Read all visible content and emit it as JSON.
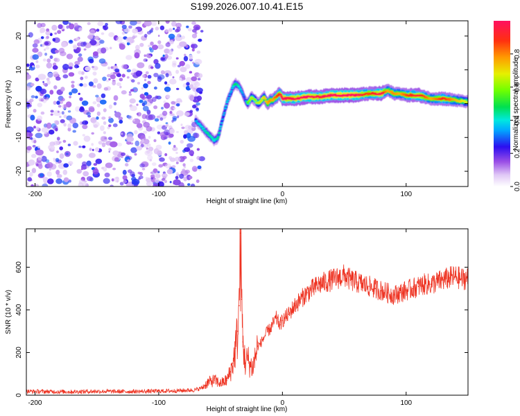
{
  "title": "S199.2026.007.10.41.E15",
  "chart_data": [
    {
      "type": "heatmap",
      "name": "spectrogram",
      "xlabel": "Height of straight line (km)",
      "ylabel": "Frequency (Hz)",
      "xlim": [
        -207,
        150
      ],
      "ylim": [
        -24.5,
        24.5
      ],
      "xticks": [
        -200,
        -100,
        0,
        100
      ],
      "yticks": [
        -20,
        -10,
        0,
        10,
        20
      ],
      "noise_region_x": [
        -207,
        -65
      ],
      "ridge": {
        "x": [
          -70,
          -65,
          -60,
          -55,
          -52,
          -48,
          -45,
          -42,
          -40,
          -38,
          -35,
          -32,
          -30,
          -28,
          -25,
          -22,
          -20,
          -17,
          -15,
          -12,
          -10,
          -8,
          -5,
          -2,
          0,
          5,
          10,
          20,
          30,
          40,
          50,
          60,
          70,
          80,
          85,
          90,
          95,
          100,
          110,
          120,
          130,
          140,
          150
        ],
        "y": [
          -5,
          -7,
          -9,
          -11,
          -10,
          -4,
          0,
          3,
          5,
          6,
          5,
          3,
          1,
          0,
          2,
          1,
          0,
          1,
          2,
          0,
          1,
          1,
          2,
          3,
          1.5,
          1.5,
          1.5,
          2,
          2,
          2.5,
          2.5,
          2.5,
          3,
          3,
          4,
          3,
          3,
          2.5,
          2.5,
          1.5,
          1.5,
          1,
          0.5
        ],
        "amplitude": [
          0.3,
          0.35,
          0.4,
          0.35,
          0.4,
          0.3,
          0.35,
          0.3,
          0.35,
          0.45,
          0.35,
          0.3,
          0.2,
          0.5,
          0.6,
          0.55,
          0.6,
          0.6,
          0.65,
          0.7,
          0.75,
          0.7,
          0.8,
          0.85,
          0.95,
          0.9,
          0.92,
          0.95,
          0.9,
          0.95,
          0.98,
          0.95,
          0.8,
          0.95,
          0.7,
          0.75,
          0.7,
          0.8,
          0.9,
          0.7,
          0.85,
          0.7,
          0.6
        ]
      },
      "colorbar": {
        "label": "Normalized spectral amplitude",
        "range": [
          0.0,
          1.0
        ],
        "ticks": [
          0.0,
          0.2,
          0.4,
          0.6,
          0.8
        ],
        "tick_labels": [
          "0.0",
          "0.2",
          "0.4",
          "0.6",
          "0.8"
        ]
      }
    },
    {
      "type": "line",
      "name": "snr",
      "xlabel": "Height of straight line (km)",
      "ylabel": "SNR (10 * v/v)",
      "xlim": [
        -207,
        150
      ],
      "ylim": [
        0,
        780
      ],
      "xticks": [
        -200,
        -100,
        0,
        100
      ],
      "yticks": [
        0,
        200,
        400,
        600
      ],
      "color": "#ee3322",
      "series": [
        {
          "name": "SNR",
          "x": [
            -207,
            -190,
            -170,
            -150,
            -130,
            -110,
            -90,
            -80,
            -70,
            -65,
            -60,
            -55,
            -50,
            -45,
            -42,
            -40,
            -38,
            -36,
            -35,
            -34,
            -33,
            -32,
            -31,
            -30,
            -28,
            -26,
            -24,
            -22,
            -20,
            -18,
            -16,
            -14,
            -12,
            -10,
            -8,
            -5,
            -2,
            0,
            5,
            10,
            15,
            20,
            25,
            30,
            35,
            40,
            45,
            50,
            55,
            60,
            65,
            70,
            75,
            80,
            85,
            90,
            95,
            100,
            105,
            110,
            115,
            120,
            125,
            130,
            135,
            140,
            145,
            150
          ],
          "y": [
            18,
            17,
            16,
            18,
            17,
            18,
            20,
            22,
            25,
            35,
            60,
            70,
            55,
            70,
            110,
            150,
            220,
            300,
            420,
            760,
            450,
            250,
            200,
            150,
            170,
            140,
            130,
            180,
            230,
            240,
            260,
            280,
            300,
            310,
            330,
            360,
            330,
            350,
            380,
            420,
            450,
            480,
            500,
            520,
            530,
            540,
            550,
            560,
            540,
            530,
            520,
            510,
            500,
            490,
            480,
            470,
            480,
            490,
            500,
            510,
            520,
            520,
            530,
            540,
            550,
            555,
            545,
            550
          ]
        }
      ]
    }
  ]
}
